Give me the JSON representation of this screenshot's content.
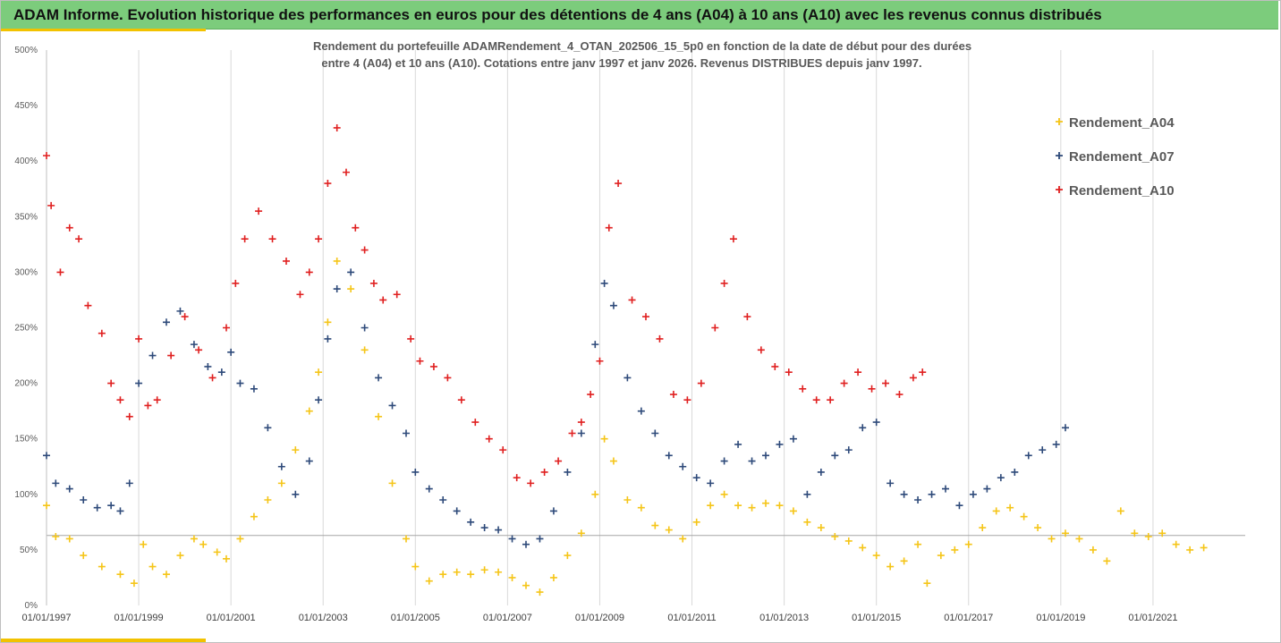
{
  "header": {
    "title": "ADAM Informe. Evolution historique des performances en euros pour des détentions de 4 ans (A04) à 10 ans (A10) avec les revenus connus distribués"
  },
  "colors": {
    "banner": "#7ccc7c",
    "accent": "#f2c200",
    "A04": "#f5c518",
    "A07": "#2e4a7a",
    "A10": "#e02020"
  },
  "chart_data": {
    "type": "scatter",
    "title_line1": "Rendement du portefeuille ADAMRendement_4_OTAN_202506_15_5p0  en fonction de la date de début pour des durées",
    "title_line2": "entre 4 (A04) et 10 ans (A10). Cotations entre janv 1997 et janv 2026. Revenus DISTRIBUES depuis janv 1997.",
    "xlabel": "",
    "ylabel": "",
    "xlim": [
      1997.0,
      2023.0
    ],
    "ylim": [
      0,
      500
    ],
    "y_ticks": [
      0,
      50,
      100,
      150,
      200,
      250,
      300,
      350,
      400,
      450,
      500
    ],
    "y_tick_labels": [
      "0%",
      "50%",
      "100%",
      "150%",
      "200%",
      "250%",
      "300%",
      "350%",
      "400%",
      "450%",
      "500%"
    ],
    "x_tick_values": [
      1997,
      1999,
      2001,
      2003,
      2005,
      2007,
      2009,
      2011,
      2013,
      2015,
      2017,
      2019,
      2021
    ],
    "x_tick_labels": [
      "01/01/1997",
      "01/01/1999",
      "01/01/2001",
      "01/01/2003",
      "01/01/2005",
      "01/01/2007",
      "01/01/2009",
      "01/01/2011",
      "01/01/2013",
      "01/01/2015",
      "01/01/2017",
      "01/01/2019",
      "01/01/2021"
    ],
    "reference_line": 63,
    "grid": "vertical",
    "legend_position": "top-right",
    "series": [
      {
        "name": "Rendement_A04",
        "x": [
          1997.0,
          1997.2,
          1997.5,
          1997.8,
          1998.2,
          1998.6,
          1998.9,
          1999.1,
          1999.3,
          1999.6,
          1999.9,
          2000.2,
          2000.4,
          2000.7,
          2000.9,
          2001.2,
          2001.5,
          2001.8,
          2002.1,
          2002.4,
          2002.7,
          2002.9,
          2003.1,
          2003.3,
          2003.6,
          2003.9,
          2004.2,
          2004.5,
          2004.8,
          2005.0,
          2005.3,
          2005.6,
          2005.9,
          2006.2,
          2006.5,
          2006.8,
          2007.1,
          2007.4,
          2007.7,
          2008.0,
          2008.3,
          2008.6,
          2008.9,
          2009.1,
          2009.3,
          2009.6,
          2009.9,
          2010.2,
          2010.5,
          2010.8,
          2011.1,
          2011.4,
          2011.7,
          2012.0,
          2012.3,
          2012.6,
          2012.9,
          2013.2,
          2013.5,
          2013.8,
          2014.1,
          2014.4,
          2014.7,
          2015.0,
          2015.3,
          2015.6,
          2015.9,
          2016.1,
          2016.4,
          2016.7,
          2017.0,
          2017.3,
          2017.6,
          2017.9,
          2018.2,
          2018.5,
          2018.8,
          2019.1,
          2019.4,
          2019.7,
          2020.0,
          2020.3,
          2020.6,
          2020.9,
          2021.2,
          2021.5,
          2021.8,
          2022.1
        ],
        "y": [
          90,
          62,
          60,
          45,
          35,
          28,
          20,
          55,
          35,
          28,
          45,
          60,
          55,
          48,
          42,
          60,
          80,
          95,
          110,
          140,
          175,
          210,
          255,
          310,
          285,
          230,
          170,
          110,
          60,
          35,
          22,
          28,
          30,
          28,
          32,
          30,
          25,
          18,
          12,
          25,
          45,
          65,
          100,
          150,
          130,
          95,
          88,
          72,
          68,
          60,
          75,
          90,
          100,
          90,
          88,
          92,
          90,
          85,
          75,
          70,
          62,
          58,
          52,
          45,
          35,
          40,
          55,
          20,
          45,
          50,
          55,
          70,
          85,
          88,
          80,
          70,
          60,
          65,
          60,
          50,
          40,
          85,
          65,
          62,
          65,
          55,
          50,
          52
        ]
      },
      {
        "name": "Rendement_A07",
        "x": [
          1997.0,
          1997.2,
          1997.5,
          1997.8,
          1998.1,
          1998.4,
          1998.6,
          1998.8,
          1999.0,
          1999.3,
          1999.6,
          1999.9,
          2000.2,
          2000.5,
          2000.8,
          2001.0,
          2001.2,
          2001.5,
          2001.8,
          2002.1,
          2002.4,
          2002.7,
          2002.9,
          2003.1,
          2003.3,
          2003.6,
          2003.9,
          2004.2,
          2004.5,
          2004.8,
          2005.0,
          2005.3,
          2005.6,
          2005.9,
          2006.2,
          2006.5,
          2006.8,
          2007.1,
          2007.4,
          2007.7,
          2008.0,
          2008.3,
          2008.6,
          2008.9,
          2009.1,
          2009.3,
          2009.6,
          2009.9,
          2010.2,
          2010.5,
          2010.8,
          2011.1,
          2011.4,
          2011.7,
          2012.0,
          2012.3,
          2012.6,
          2012.9,
          2013.2,
          2013.5,
          2013.8,
          2014.1,
          2014.4,
          2014.7,
          2015.0,
          2015.3,
          2015.6,
          2015.9,
          2016.2,
          2016.5,
          2016.8,
          2017.1,
          2017.4,
          2017.7,
          2018.0,
          2018.3,
          2018.6,
          2018.9,
          2019.1
        ],
        "y": [
          135,
          110,
          105,
          95,
          88,
          90,
          85,
          110,
          200,
          225,
          255,
          265,
          235,
          215,
          210,
          228,
          200,
          195,
          160,
          125,
          100,
          130,
          185,
          240,
          285,
          300,
          250,
          205,
          180,
          155,
          120,
          105,
          95,
          85,
          75,
          70,
          68,
          60,
          55,
          60,
          85,
          120,
          155,
          235,
          290,
          270,
          205,
          175,
          155,
          135,
          125,
          115,
          110,
          130,
          145,
          130,
          135,
          145,
          150,
          100,
          120,
          135,
          140,
          160,
          165,
          110,
          100,
          95,
          100,
          105,
          90,
          100,
          105,
          115,
          120,
          135,
          140,
          145,
          160
        ]
      },
      {
        "name": "Rendement_A10",
        "x": [
          1997.0,
          1997.1,
          1997.3,
          1997.5,
          1997.7,
          1997.9,
          1998.2,
          1998.4,
          1998.6,
          1998.8,
          1999.0,
          1999.2,
          1999.4,
          1999.7,
          2000.0,
          2000.3,
          2000.6,
          2000.9,
          2001.1,
          2001.3,
          2001.6,
          2001.9,
          2002.2,
          2002.5,
          2002.7,
          2002.9,
          2003.1,
          2003.3,
          2003.5,
          2003.7,
          2003.9,
          2004.1,
          2004.3,
          2004.6,
          2004.9,
          2005.1,
          2005.4,
          2005.7,
          2006.0,
          2006.3,
          2006.6,
          2006.9,
          2007.2,
          2007.5,
          2007.8,
          2008.1,
          2008.4,
          2008.6,
          2008.8,
          2009.0,
          2009.2,
          2009.4,
          2009.7,
          2010.0,
          2010.3,
          2010.6,
          2010.9,
          2011.2,
          2011.5,
          2011.7,
          2011.9,
          2012.2,
          2012.5,
          2012.8,
          2013.1,
          2013.4,
          2013.7,
          2014.0,
          2014.3,
          2014.6,
          2014.9,
          2015.2,
          2015.5,
          2015.8,
          2016.0
        ],
        "y": [
          405,
          360,
          300,
          340,
          330,
          270,
          245,
          200,
          185,
          170,
          240,
          180,
          185,
          225,
          260,
          230,
          205,
          250,
          290,
          330,
          355,
          330,
          310,
          280,
          300,
          330,
          380,
          430,
          390,
          340,
          320,
          290,
          275,
          280,
          240,
          220,
          215,
          205,
          185,
          165,
          150,
          140,
          115,
          110,
          120,
          130,
          155,
          165,
          190,
          220,
          340,
          380,
          275,
          260,
          240,
          190,
          185,
          200,
          250,
          290,
          330,
          260,
          230,
          215,
          210,
          195,
          185,
          185,
          200,
          210,
          195,
          200,
          190,
          205,
          210
        ]
      }
    ]
  }
}
